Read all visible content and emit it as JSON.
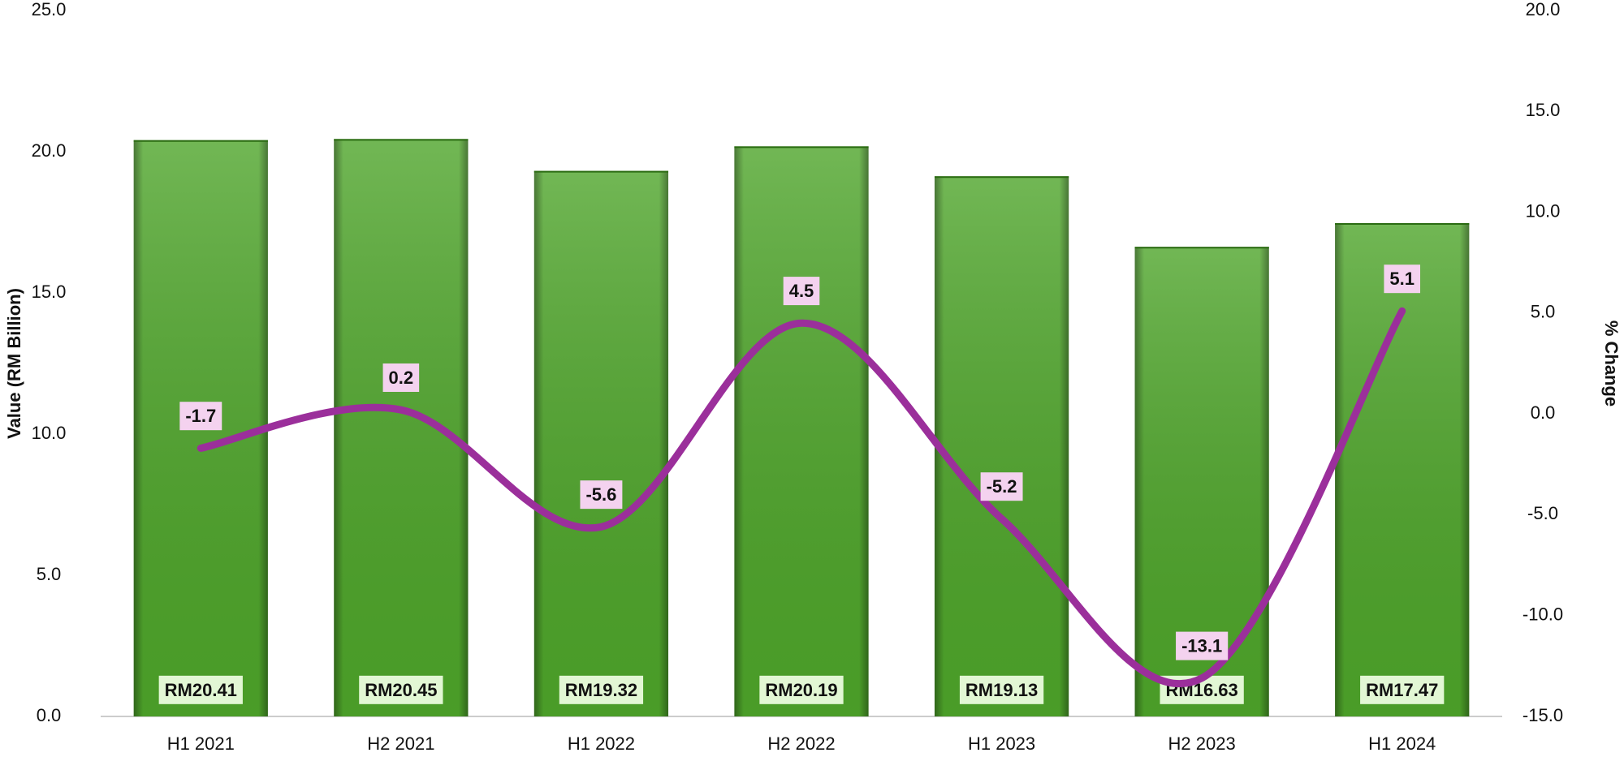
{
  "chart_data": {
    "type": "bar",
    "y_label": "Value (RM Billion)",
    "y2_label": "% Change",
    "categories": [
      "H1 2021",
      "H2 2021",
      "H1 2022",
      "H2 2022",
      "H1 2023",
      "H2 2023",
      "H1 2024"
    ],
    "series": [
      {
        "type": "bar",
        "color": "#4ea52a",
        "values": [
          20.41,
          20.45,
          19.32,
          20.19,
          19.13,
          16.63,
          17.47
        ],
        "value_labels": [
          "RM20.41",
          "RM20.45",
          "RM19.32",
          "RM20.19",
          "RM19.13",
          "RM16.63",
          "RM17.47"
        ]
      },
      {
        "type": "line",
        "axis": "y2",
        "color": "#9b2f9b",
        "values": [
          -1.7,
          0.2,
          -5.6,
          4.5,
          -5.2,
          -13.1,
          5.1
        ]
      }
    ],
    "ylim": [
      0,
      25
    ],
    "yticks": [
      {
        "value": 0,
        "label": "0.0"
      },
      {
        "value": 5,
        "label": "5.0"
      },
      {
        "value": 10,
        "label": "10.0"
      },
      {
        "value": 15,
        "label": "15.0"
      },
      {
        "value": 20,
        "label": "20.0"
      },
      {
        "value": 25,
        "label": "25.0"
      }
    ],
    "y2lim": [
      -15,
      20
    ],
    "y2ticks": [
      {
        "value": -15,
        "label": "-15.0"
      },
      {
        "value": -10,
        "label": "-10.0"
      },
      {
        "value": -5,
        "label": "-5.0"
      },
      {
        "value": 0,
        "label": "0.0"
      },
      {
        "value": 5,
        "label": "5.0"
      },
      {
        "value": 10,
        "label": "10.0"
      },
      {
        "value": 15,
        "label": "15.0"
      },
      {
        "value": 20,
        "label": "20.0"
      }
    ]
  }
}
